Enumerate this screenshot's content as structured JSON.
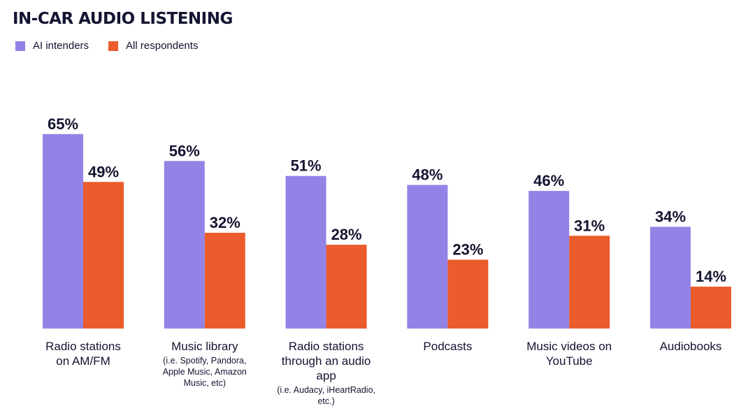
{
  "title": "IN-CAR AUDIO LISTENING",
  "colors": {
    "ai": "#9383e6",
    "all": "#ea5c2b",
    "text": "#141432"
  },
  "chart_data": {
    "type": "bar",
    "title": "IN-CAR AUDIO LISTENING",
    "xlabel": "",
    "ylabel": "",
    "ylim": [
      0,
      100
    ],
    "legend": "top-left",
    "grid": false,
    "value_suffix": "%",
    "categories": [
      "Radio stations on AM/FM",
      "Music library",
      "Radio stations through an audio app",
      "Podcasts",
      "Music videos on YouTube",
      "Audiobooks"
    ],
    "category_notes": [
      "",
      "(i.e. Spotify, Pandora, Apple Music, Amazon Music, etc)",
      "(i.e. Audacy, iHeartRadio, etc.)",
      "",
      "",
      ""
    ],
    "series": [
      {
        "name": "AI intenders",
        "values": [
          65,
          56,
          51,
          48,
          46,
          34
        ]
      },
      {
        "name": "All respondents",
        "values": [
          49,
          32,
          28,
          23,
          31,
          14
        ]
      }
    ]
  }
}
